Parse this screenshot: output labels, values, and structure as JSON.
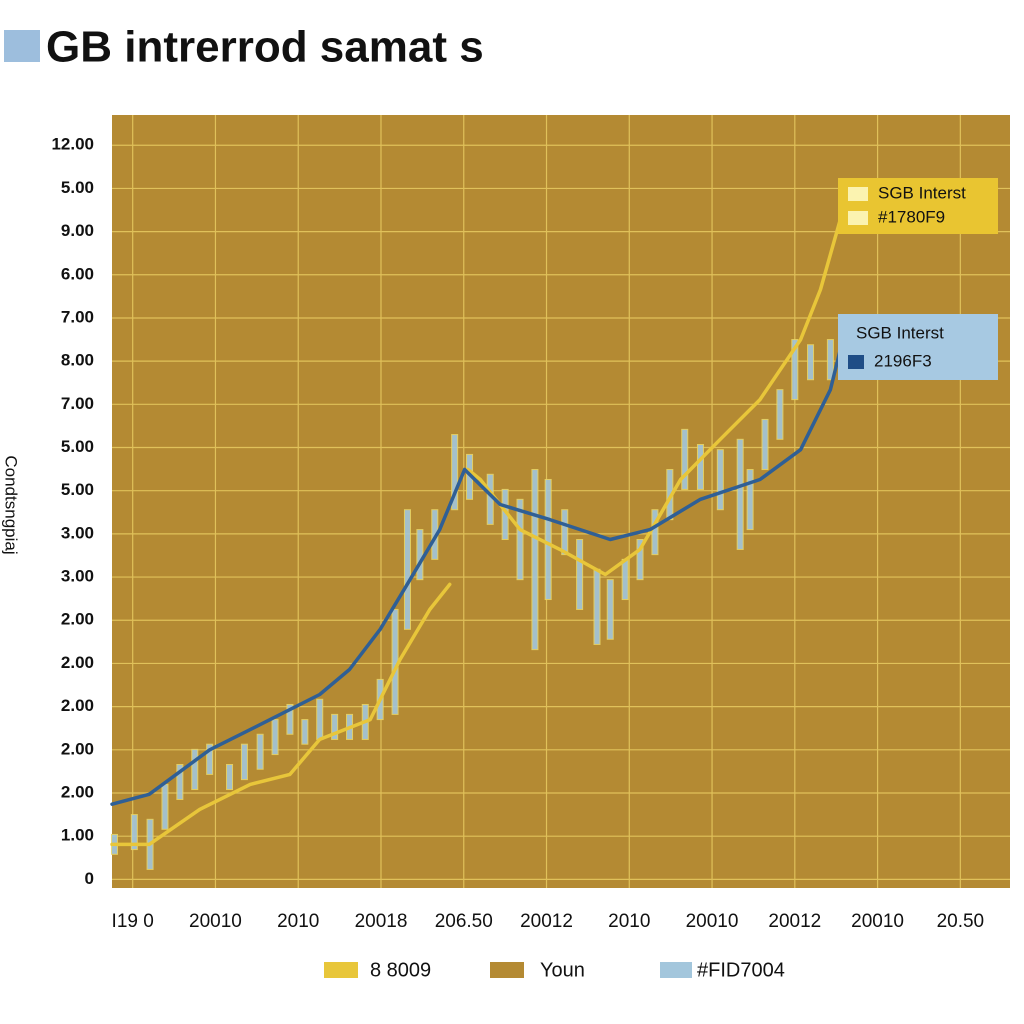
{
  "chart_data": {
    "type": "line",
    "title": "GB intrerrod samat s",
    "ylabel": "Condtsngpiaj",
    "background": {
      "name": "Youn",
      "color": "#b48a33"
    },
    "grid": true,
    "xlim": [
      -0.25,
      10.6
    ],
    "xticks": [
      {
        "value": 0,
        "label": "I19 0"
      },
      {
        "value": 1,
        "label": "20010"
      },
      {
        "value": 2,
        "label": "2010"
      },
      {
        "value": 3,
        "label": "20018"
      },
      {
        "value": 4,
        "label": "206.50"
      },
      {
        "value": 5,
        "label": "20012"
      },
      {
        "value": 6,
        "label": "2010"
      },
      {
        "value": 7,
        "label": "20010"
      },
      {
        "value": 8,
        "label": "20012"
      },
      {
        "value": 9,
        "label": "20010"
      },
      {
        "value": 10,
        "label": "20.50"
      }
    ],
    "ylim": [
      -0.2,
      17.7
    ],
    "yticks": [
      0,
      {
        "value": 1,
        "label": "1.00"
      },
      {
        "value": 2,
        "label": "2.00"
      },
      {
        "value": 3,
        "label": "2.00"
      },
      {
        "value": 4,
        "label": "2.00"
      },
      {
        "value": 5,
        "label": "2.00"
      },
      {
        "value": 6,
        "label": "2.00"
      },
      {
        "value": 7,
        "label": "3.00"
      },
      {
        "value": 8,
        "label": "3.00"
      },
      {
        "value": 9,
        "label": "5.00"
      },
      {
        "value": 10,
        "label": "5.00"
      },
      {
        "value": 11,
        "label": "7.00"
      },
      {
        "value": 12,
        "label": "8.00"
      },
      {
        "value": 13,
        "label": "7.00"
      },
      {
        "value": 14,
        "label": "6.00"
      },
      {
        "value": 15,
        "label": "9.00"
      },
      {
        "value": 16,
        "label": "5.00"
      },
      {
        "value": 17,
        "label": "12.00"
      }
    ],
    "series": [
      {
        "name": "8 8009",
        "color": "#e8c63a",
        "kind": "line",
        "x": [
          -0.25,
          0.2,
          0.81,
          1.42,
          1.9,
          2.26,
          2.87,
          3.23,
          3.59,
          3.83,
          null,
          4.05,
          4.2,
          4.68,
          5.16,
          5.71,
          6.13,
          6.62,
          7.1,
          7.58,
          8.07,
          8.31,
          8.55
        ],
        "values": [
          0.81,
          0.81,
          1.62,
          2.2,
          2.43,
          3.24,
          3.7,
          5.09,
          6.25,
          6.83,
          null,
          9.49,
          9.26,
          8.1,
          7.64,
          7.06,
          7.64,
          9.26,
          10.19,
          11.11,
          12.5,
          13.66,
          15.28
        ]
      },
      {
        "color": "#2f5f95",
        "kind": "line",
        "x": [
          -0.25,
          0.2,
          0.93,
          1.66,
          2.26,
          2.62,
          2.99,
          3.35,
          3.71,
          4.01,
          4.44,
          5.04,
          5.77,
          6.25,
          6.86,
          7.58,
          8.07,
          8.43,
          8.55
        ],
        "values": [
          1.74,
          1.97,
          3.0,
          3.7,
          4.28,
          4.86,
          5.79,
          6.94,
          8.1,
          9.49,
          8.68,
          8.33,
          7.87,
          8.1,
          8.8,
          9.26,
          9.95,
          11.34,
          12.27
        ]
      },
      {
        "name": "#FID7004",
        "color": "#a3c6dc",
        "kind": "range",
        "x": [
          -0.22,
          0.02,
          0.21,
          0.39,
          0.57,
          0.75,
          0.93,
          1.17,
          1.35,
          1.54,
          1.72,
          1.9,
          2.08,
          2.26,
          2.44,
          2.62,
          2.81,
          2.99,
          3.17,
          3.32,
          3.47,
          3.65,
          3.89,
          4.07,
          4.32,
          4.5,
          4.68,
          4.86,
          5.02,
          5.22,
          5.4,
          5.61,
          5.77,
          5.95,
          6.13,
          6.31,
          6.49,
          6.67,
          6.86,
          7.1,
          7.34,
          7.46,
          7.64,
          7.82,
          8.0,
          8.19,
          8.43
        ],
        "low": [
          0.58,
          0.69,
          0.23,
          1.16,
          1.85,
          2.08,
          2.43,
          2.08,
          2.31,
          2.55,
          2.89,
          3.36,
          3.13,
          3.24,
          3.24,
          3.24,
          3.24,
          3.7,
          3.82,
          5.79,
          6.94,
          7.41,
          8.56,
          8.8,
          8.22,
          7.87,
          6.94,
          5.32,
          6.48,
          7.52,
          6.25,
          5.44,
          5.56,
          6.48,
          6.94,
          7.52,
          8.33,
          9.03,
          9.03,
          8.56,
          7.64,
          8.1,
          9.49,
          10.19,
          11.11,
          11.57,
          11.57
        ],
        "high": [
          1.04,
          1.5,
          1.39,
          2.2,
          2.66,
          3.01,
          3.13,
          2.66,
          3.13,
          3.36,
          3.7,
          4.05,
          3.7,
          4.17,
          3.82,
          3.82,
          4.05,
          4.63,
          6.25,
          8.56,
          8.1,
          8.56,
          10.3,
          9.84,
          9.38,
          9.03,
          8.8,
          9.49,
          9.26,
          8.56,
          7.87,
          7.18,
          6.94,
          7.41,
          7.87,
          8.56,
          9.49,
          10.42,
          10.07,
          9.95,
          10.19,
          9.49,
          10.65,
          11.34,
          12.5,
          12.38,
          12.5
        ]
      }
    ],
    "annotations": [
      {
        "lines": [
          "SGB Interst",
          "#1780F9"
        ],
        "color": "#e9c531",
        "swatch": "#fbf3b0"
      },
      {
        "lines": [
          "SGB Interst",
          "2196F3"
        ],
        "color": "#a7c9e2",
        "swatch": "#1f4d86"
      }
    ]
  }
}
